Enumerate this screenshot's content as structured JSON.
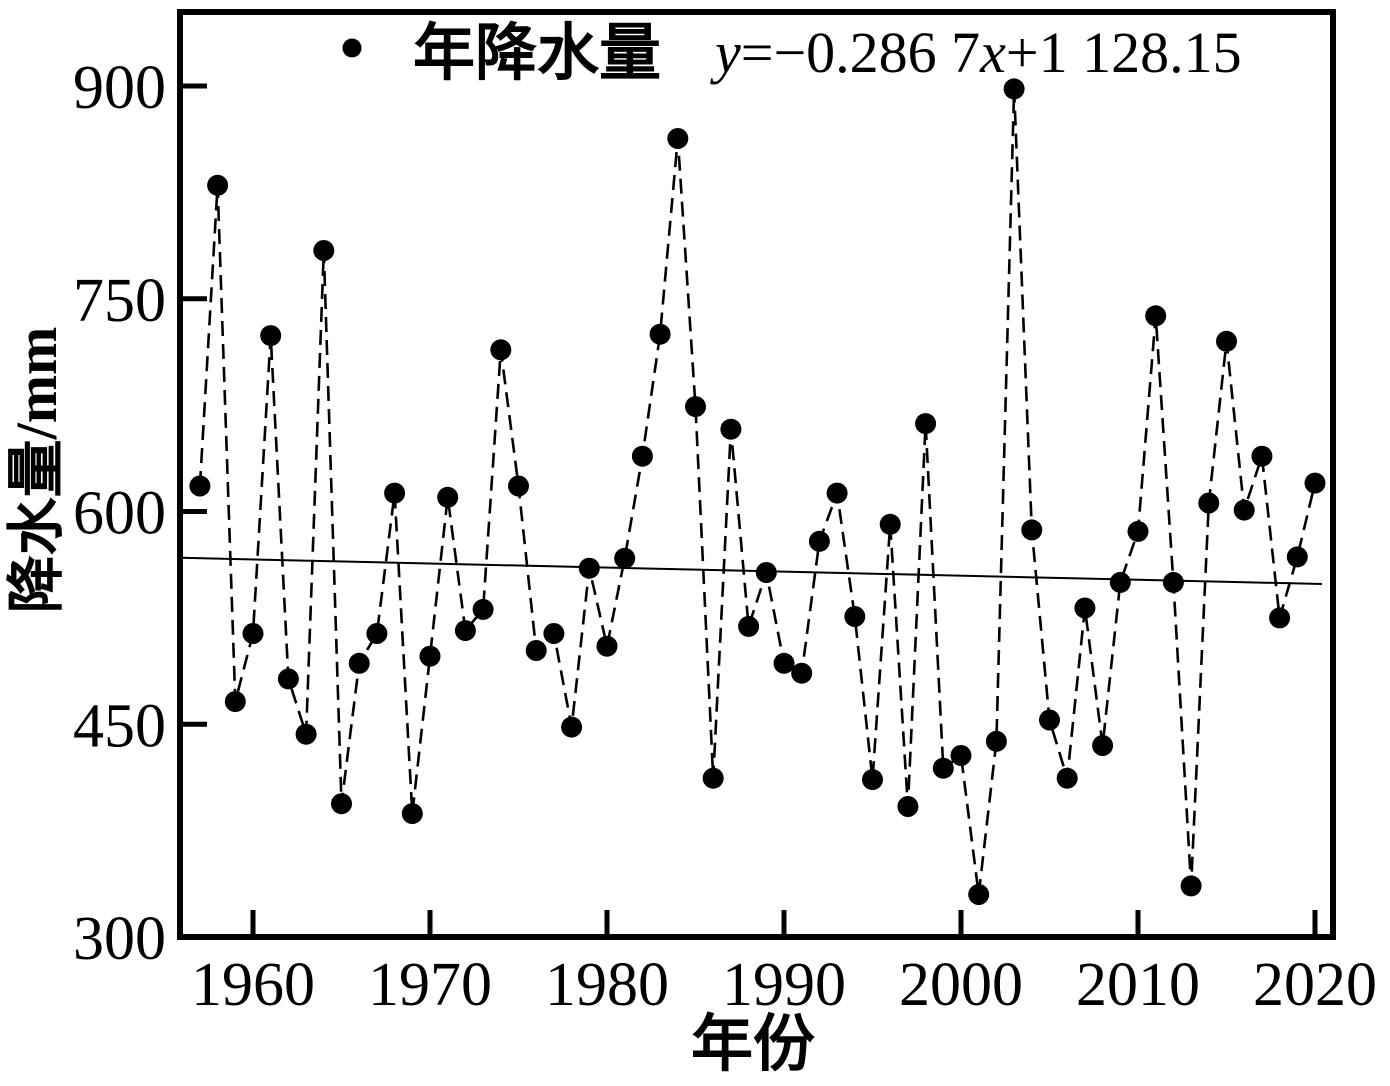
{
  "page": {
    "background": "#ffffff",
    "ink_color": "#000000"
  },
  "chart_data": {
    "type": "line",
    "title": "",
    "legend": {
      "label": "年降水量",
      "marker": "filled-circle",
      "position": "top-center"
    },
    "equation_text": "y=−0.286 7x+1 128.15",
    "equation_parts": [
      {
        "text": "y",
        "italic": true
      },
      {
        "text": "=−0.286 7",
        "italic": false
      },
      {
        "text": "x",
        "italic": true
      },
      {
        "text": "+1 128.15",
        "italic": false
      }
    ],
    "xlabel": "年份",
    "ylabel": "降水量/mm",
    "x_ticks": [
      1960,
      1970,
      1980,
      1990,
      2000,
      2010,
      2020
    ],
    "y_ticks": [
      300,
      450,
      600,
      750,
      900
    ],
    "xlim": [
      1955.9,
      2021
    ],
    "ylim": [
      300,
      952
    ],
    "grid": false,
    "marker_color": "#000000",
    "line_style": "dashed",
    "start_year": 1957,
    "end_year": 2020,
    "values": [
      618,
      830,
      466,
      514,
      724,
      482,
      443,
      784,
      394,
      493,
      514,
      613,
      387,
      498,
      610,
      516,
      531,
      714,
      618,
      502,
      514,
      448,
      560,
      505,
      567,
      639,
      725,
      863,
      674,
      412,
      658,
      519,
      557,
      493,
      486,
      579,
      613,
      526,
      411,
      591,
      392,
      662,
      419,
      428,
      330,
      438,
      898,
      587,
      453,
      412,
      532,
      435,
      550,
      586,
      738,
      550,
      336,
      606,
      720,
      601,
      639,
      525,
      568,
      620
    ],
    "trend": {
      "slope": -0.2867,
      "intercept": 1128.15,
      "style": "solid"
    }
  }
}
